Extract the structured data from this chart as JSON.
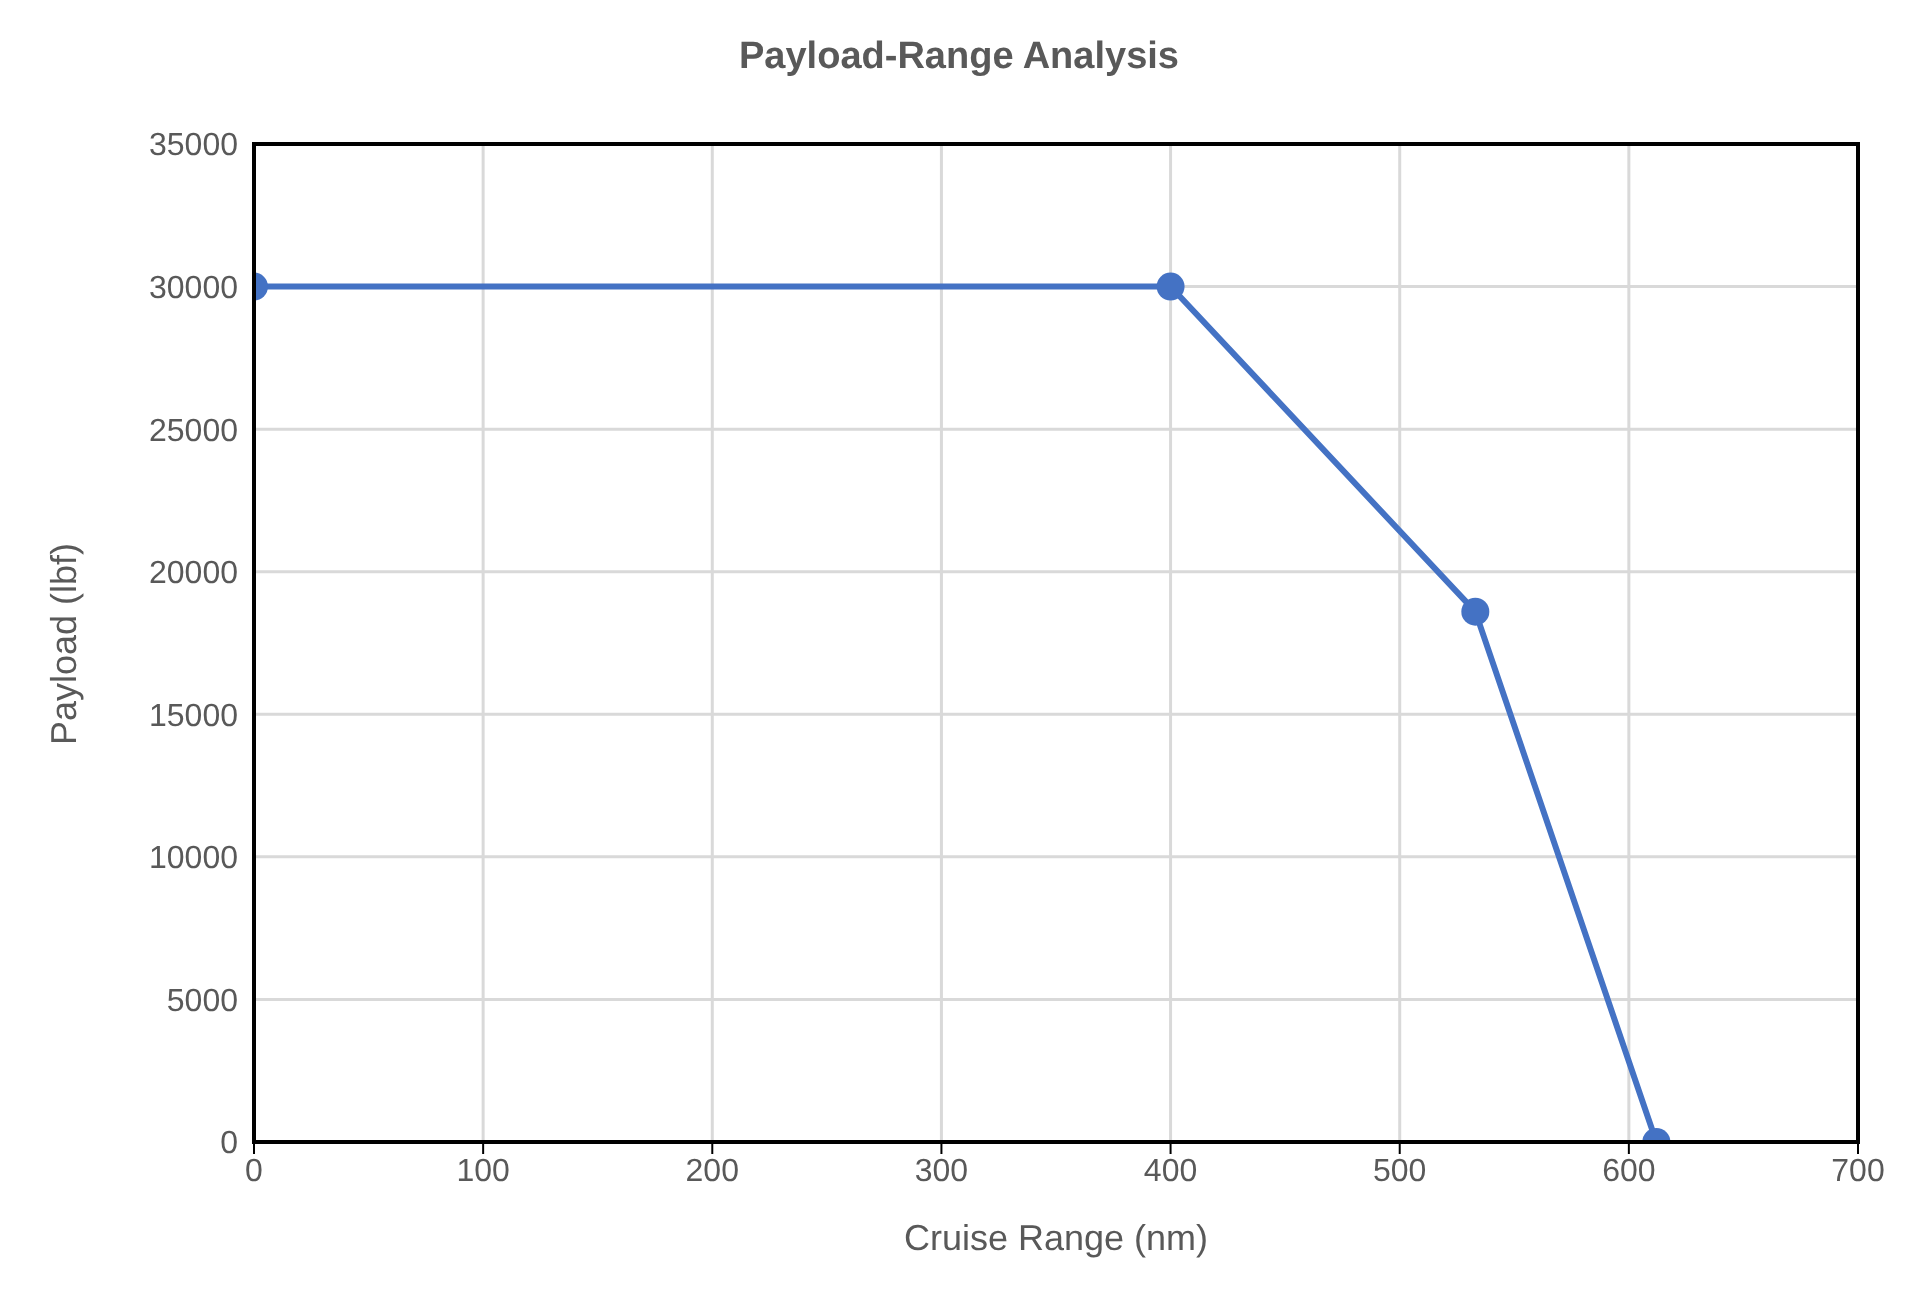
{
  "chart_data": {
    "type": "line",
    "title": "Payload-Range Analysis",
    "xlabel": "Cruise Range (nm)",
    "ylabel": "Payload (lbf)",
    "x": [
      0,
      400,
      533,
      612
    ],
    "series": [
      {
        "color": "#4472c4",
        "values": [
          30000,
          30000,
          18600,
          0
        ]
      }
    ],
    "xlim": [
      0,
      700
    ],
    "xticks": [
      0,
      100,
      200,
      300,
      400,
      500,
      600,
      700
    ],
    "ylim": [
      0,
      35000
    ],
    "yticks": [
      0,
      5000,
      10000,
      15000,
      20000,
      25000,
      30000,
      35000
    ],
    "grid": true,
    "marker": "circle",
    "line_style": "solid"
  }
}
